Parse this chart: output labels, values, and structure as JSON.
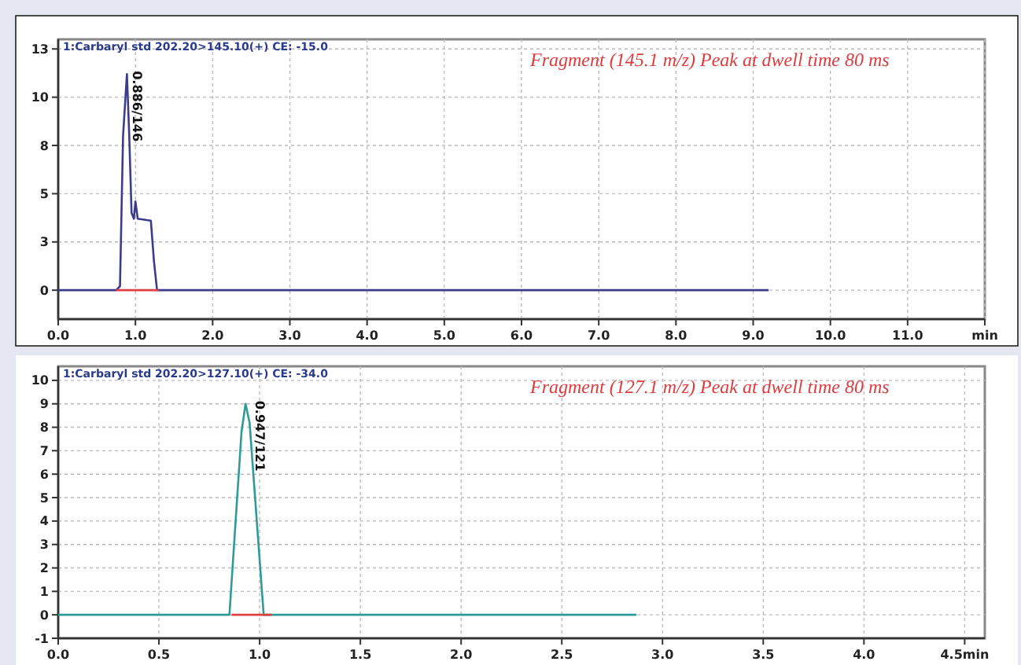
{
  "chart_data": [
    {
      "type": "line",
      "title": "1:Carbaryl std 202.20>145.10(+) CE: -15.0",
      "xlim": [
        0,
        12
      ],
      "ylim": [
        -1.5,
        13
      ],
      "xticks": [
        {
          "value": 0,
          "label": "0.0"
        },
        {
          "value": 1,
          "label": "1.0"
        },
        {
          "value": 2,
          "label": "2.0"
        },
        {
          "value": 3,
          "label": "3.0"
        },
        {
          "value": 4,
          "label": "4.0"
        },
        {
          "value": 5,
          "label": "5.0"
        },
        {
          "value": 6,
          "label": "6.0"
        },
        {
          "value": 7,
          "label": "7.0"
        },
        {
          "value": 8,
          "label": "8.0"
        },
        {
          "value": 9,
          "label": "9.0"
        },
        {
          "value": 10,
          "label": "10.0"
        },
        {
          "value": 11,
          "label": "11.0"
        },
        {
          "value": 12,
          "label": "min"
        }
      ],
      "yticks": [
        0,
        {
          "value": 2.5,
          "label": "3"
        },
        5,
        {
          "value": 7.5,
          "label": "8"
        },
        10,
        {
          "value": 12.5,
          "label": "13"
        }
      ],
      "grid": true,
      "marker": "none",
      "line_style": "solid",
      "series": [
        {
          "color": "#3c3c8c",
          "x": [
            0,
            0.75,
            0.8,
            0.84,
            0.89,
            0.92,
            0.95,
            0.98,
            1.0,
            1.03,
            1.2,
            1.24,
            1.28,
            9.2
          ],
          "values": [
            0,
            0,
            0.2,
            8,
            11.2,
            8,
            4,
            3.7,
            4.6,
            3.7,
            3.6,
            1.5,
            0,
            0
          ]
        },
        {
          "color": "#e04040",
          "x": [
            0.75,
            1.3
          ],
          "values": [
            0,
            0
          ]
        }
      ],
      "annotations": [
        {
          "text": "0.886/146",
          "x": 0.89,
          "y": 11.2
        },
        "Fragment (145.1 m/z) Peak at dwell time 80 ms"
      ]
    },
    {
      "type": "line",
      "title": "1:Carbaryl std 202.20>127.10(+) CE: -34.0",
      "xlim": [
        0,
        4.6
      ],
      "ylim": [
        -1,
        10.6
      ],
      "xticks": [
        {
          "value": 0,
          "label": "0.0"
        },
        {
          "value": 0.5,
          "label": "0.5"
        },
        {
          "value": 1,
          "label": "1.0"
        },
        {
          "value": 1.5,
          "label": "1.5"
        },
        {
          "value": 2,
          "label": "2.0"
        },
        {
          "value": 2.5,
          "label": "2.5"
        },
        {
          "value": 3,
          "label": "3.0"
        },
        {
          "value": 3.5,
          "label": "3.5"
        },
        {
          "value": 4,
          "label": "4.0"
        },
        {
          "value": 4.5,
          "label": "4.5min"
        }
      ],
      "yticks": [
        -1,
        0,
        1,
        2,
        3,
        4,
        5,
        6,
        7,
        8,
        9,
        10
      ],
      "grid": true,
      "marker": "none",
      "line_style": "solid",
      "series": [
        {
          "color": "#2e9a9a",
          "x": [
            0,
            0.85,
            0.91,
            0.93,
            0.95,
            1.02,
            2.87
          ],
          "values": [
            0,
            0,
            7.8,
            9,
            8.2,
            0,
            0
          ]
        },
        {
          "color": "#e04040",
          "x": [
            0.86,
            1.06
          ],
          "values": [
            0,
            0
          ]
        }
      ],
      "annotations": [
        {
          "text": "0.947/121",
          "x": 0.95,
          "y": 9
        },
        "Fragment (127.1 m/z) Peak at dwell time 80 ms"
      ]
    }
  ]
}
